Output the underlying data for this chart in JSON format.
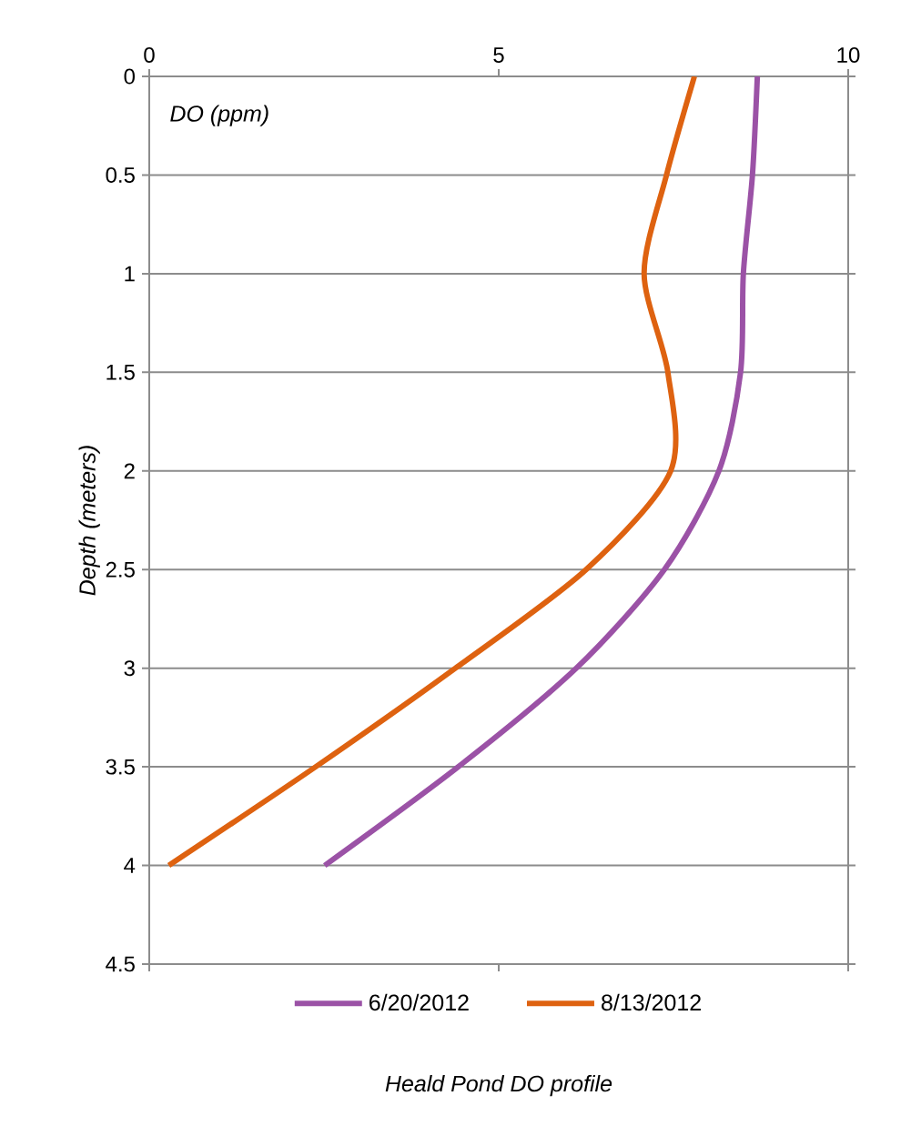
{
  "chart_data": {
    "type": "line",
    "title": "Heald Pond DO profile",
    "xlabel": "DO (ppm)",
    "ylabel": "Depth (meters)",
    "xlim": [
      0,
      10
    ],
    "xticks": [
      0,
      5,
      10
    ],
    "ylim": [
      4.5,
      0
    ],
    "yticks": [
      0,
      0.5,
      1,
      1.5,
      2,
      2.5,
      3,
      3.5,
      4,
      4.5
    ],
    "grid": "y",
    "legend": "bottom",
    "series": [
      {
        "name": "6/20/2012",
        "color": "#9b52a6",
        "x": [
          8.7,
          8.63,
          8.5,
          8.46,
          8.15,
          7.37,
          6.11,
          4.42,
          2.51
        ],
        "values": [
          0,
          0.5,
          1,
          1.5,
          2,
          2.5,
          3,
          3.5,
          4
        ]
      },
      {
        "name": "8/13/2012",
        "color": "#de6210",
        "x": [
          7.8,
          7.4,
          7.08,
          7.42,
          7.46,
          6.25,
          4.38,
          2.38,
          0.28
        ],
        "values": [
          0,
          0.5,
          1,
          1.5,
          2,
          2.5,
          3,
          3.5,
          4
        ]
      }
    ]
  }
}
